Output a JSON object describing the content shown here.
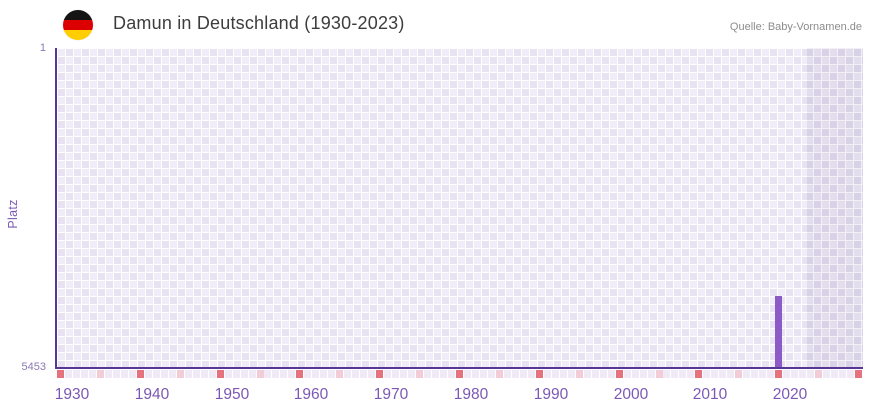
{
  "header": {
    "title": "Damun in Deutschland (1930-2023)",
    "source": "Quelle: Baby-Vornamen.de"
  },
  "chart_data": {
    "type": "bar",
    "title": "Damun in Deutschland (1930-2023)",
    "source": "Quelle: Baby-Vornamen.de",
    "ylabel": "Platz",
    "y_axis": {
      "inverted": true,
      "top_value": 1,
      "bottom_value": 5453,
      "top_label": "1",
      "bottom_label": "5453"
    },
    "x_axis": {
      "start_year": 1930,
      "end_year": 2030,
      "data_end_year": 2023,
      "tick_years": [
        1930,
        1940,
        1950,
        1960,
        1970,
        1980,
        1990,
        2000,
        2010,
        2020
      ]
    },
    "series": [
      {
        "name": "Damun",
        "points": [
          {
            "year": 2020,
            "rank": 4243
          }
        ]
      }
    ],
    "shaded_no_data_region": {
      "from_year": 2024,
      "to_year": 2030
    },
    "bottom_markers": {
      "strong_interval_years": 10,
      "light_interval_years": 5,
      "first_year": 1930,
      "last_year": 2030
    },
    "colors": {
      "bar": "#8b5bc7",
      "axis_line": "#573795",
      "x_tick_label": "#7c58b4",
      "y_tick_label": "#8a7ab2",
      "marker_strong": "#e5737e",
      "marker_light": "#f2ccd6",
      "marker_default": "#efeaf6",
      "cell_light": "#f1edf8",
      "cell_light_alt": "#e8e2f2",
      "cell_dark": "#e3ddee",
      "cell_dark_alt": "#d9d2e6",
      "title_text": "#3d3d3d",
      "source_text": "#8c8c8c",
      "flag_black": "#141414",
      "flag_red": "#dd0000",
      "flag_gold": "#ffce00"
    }
  }
}
